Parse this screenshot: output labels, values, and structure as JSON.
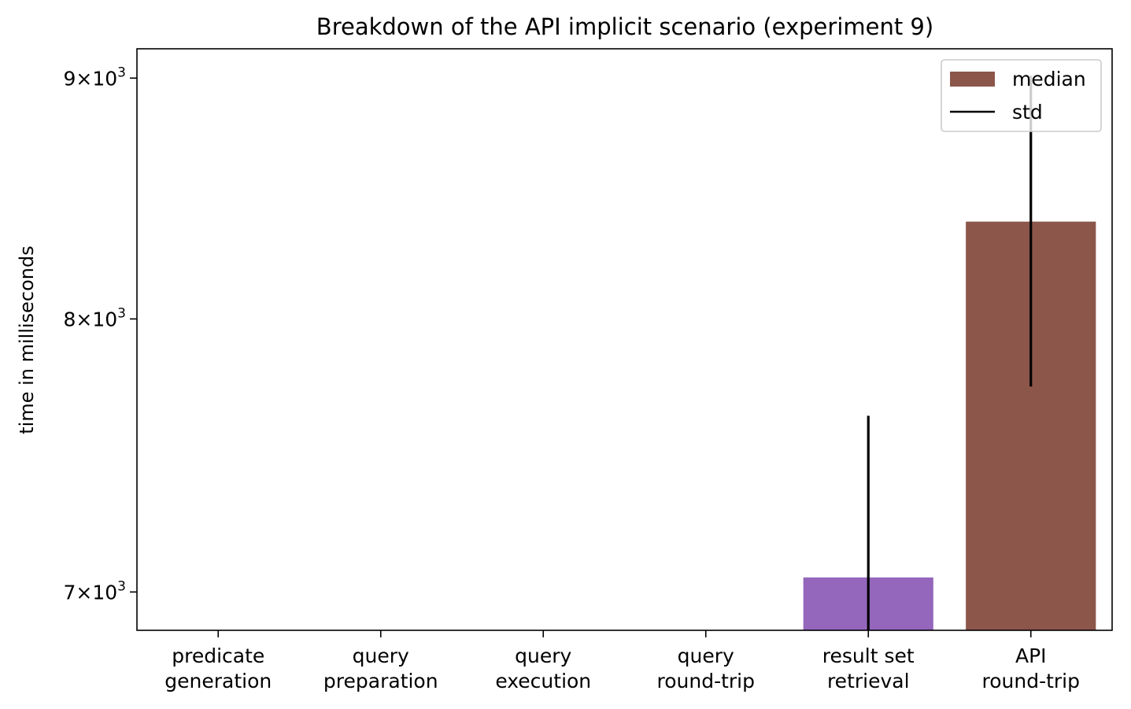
{
  "chart_data": {
    "type": "bar",
    "title": "Breakdown of the API implicit scenario (experiment 9)",
    "xlabel": "",
    "ylabel": "time in milliseconds",
    "yscale": "log",
    "ylim": [
      6870,
      9130
    ],
    "yticks": [
      {
        "value": 7000,
        "mantissa": "7",
        "base": "10",
        "exponent": "3"
      },
      {
        "value": 8000,
        "mantissa": "8",
        "base": "10",
        "exponent": "3"
      },
      {
        "value": 9000,
        "mantissa": "9",
        "base": "10",
        "exponent": "3"
      }
    ],
    "categories": [
      [
        "predicate",
        "generation"
      ],
      [
        "query",
        "preparation"
      ],
      [
        "query",
        "execution"
      ],
      [
        "query",
        "round-trip"
      ],
      [
        "result set",
        "retrieval"
      ],
      [
        "API",
        "round-trip"
      ]
    ],
    "values": [
      null,
      null,
      null,
      null,
      7050,
      8390
    ],
    "std_low": [
      null,
      null,
      null,
      null,
      6870,
      7740
    ],
    "std_high": [
      null,
      null,
      null,
      null,
      7630,
      9010
    ],
    "bar_colors": [
      "#1f77b4",
      "#ff7f0e",
      "#2ca02c",
      "#d62728",
      "#9467bd",
      "#8c564b"
    ],
    "std_color": "#000000",
    "grid": false,
    "legend": {
      "placement": "top-right",
      "entries": [
        {
          "label": "median",
          "kind": "patch",
          "color": "#8c564b"
        },
        {
          "label": "std",
          "kind": "line",
          "color": "#000000"
        }
      ]
    }
  }
}
